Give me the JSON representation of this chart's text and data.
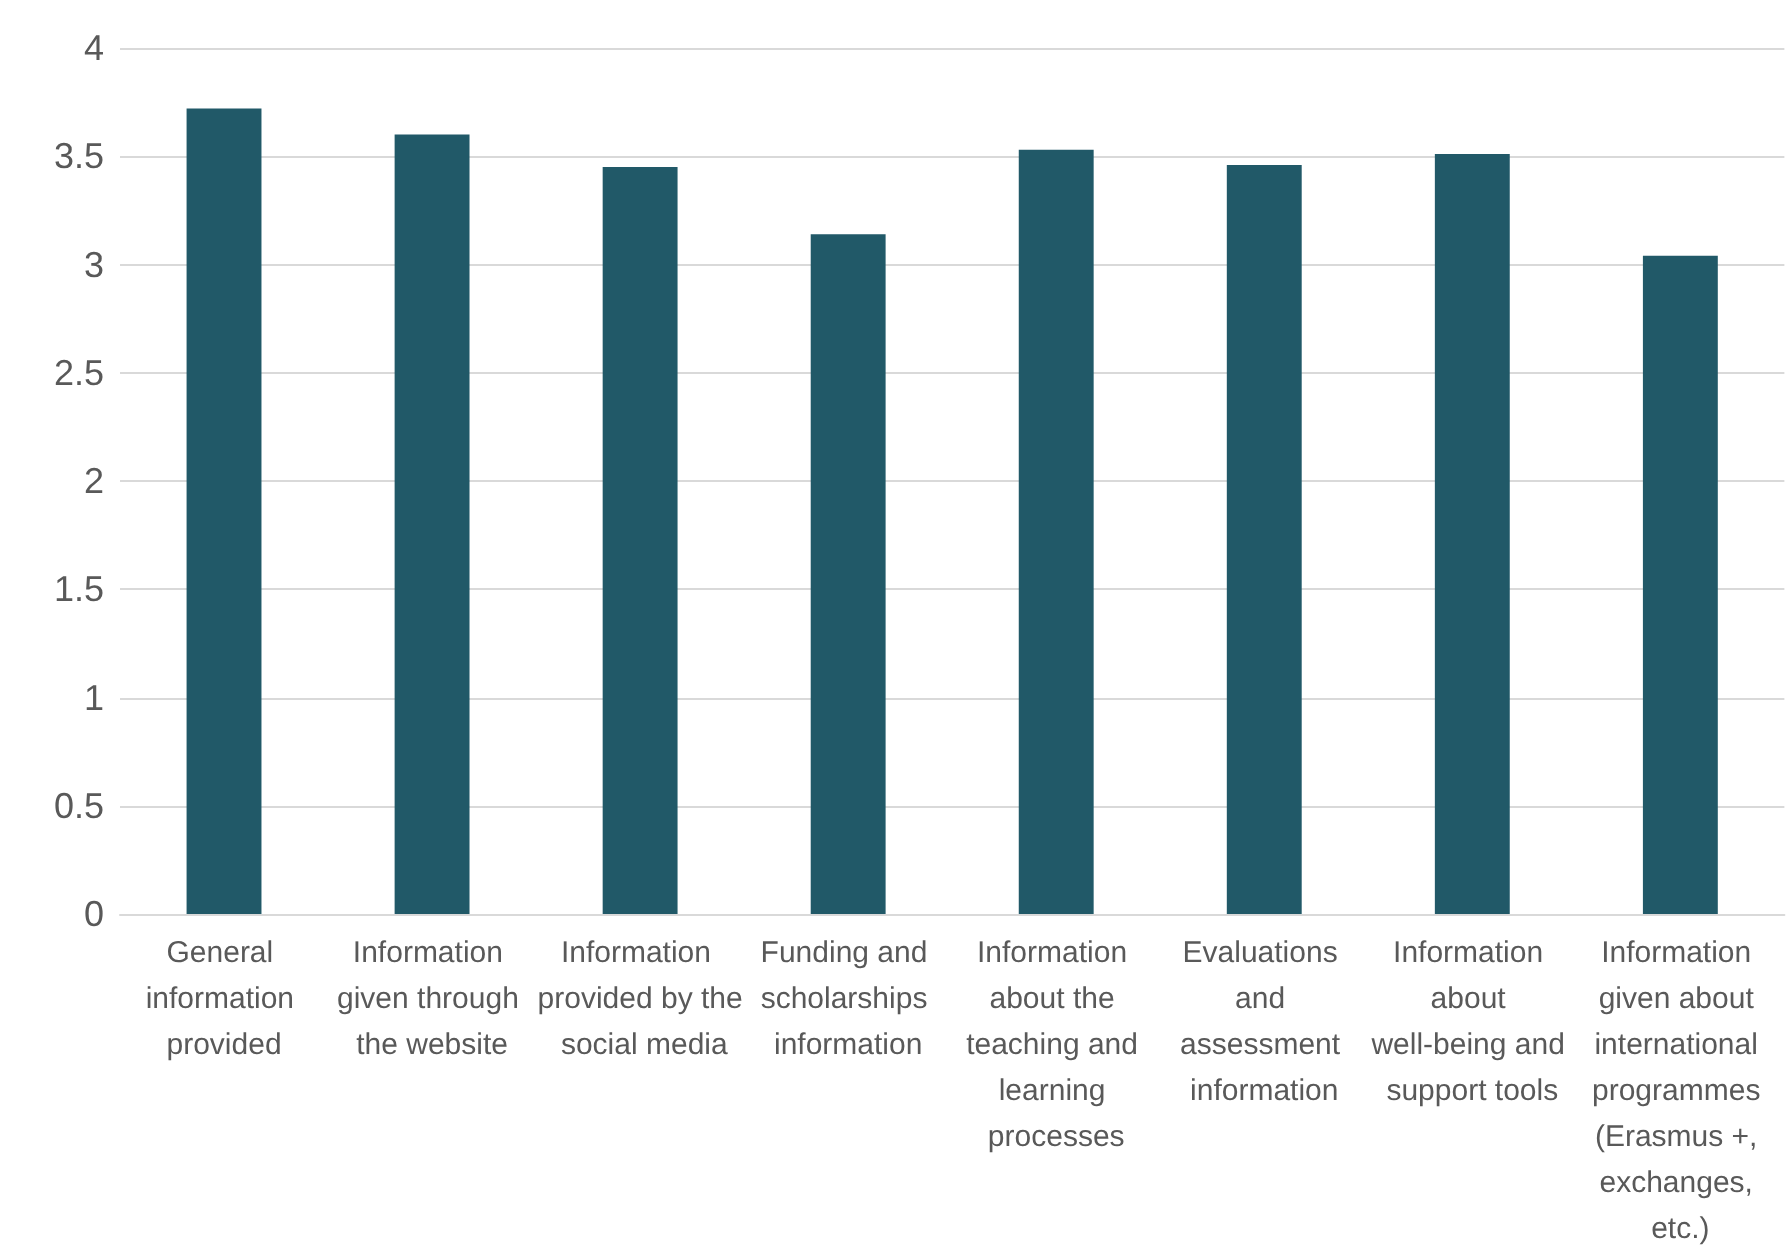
{
  "chart_data": {
    "type": "bar",
    "categories": [
      "General information provided",
      "Information given through the website",
      "Information provided by the social media",
      "Funding and scholarships information",
      "Information about the teaching and learning processes",
      "Evaluations and assessment information",
      "Information about well-being and support tools",
      "Information given about international programmes (Erasmus +, exchanges, etc.)"
    ],
    "values": [
      3.72,
      3.6,
      3.45,
      3.14,
      3.53,
      3.46,
      3.51,
      3.04
    ],
    "color": "#215968",
    "ylim": [
      0,
      4
    ],
    "yticks": [
      0,
      0.5,
      1,
      1.5,
      2,
      2.5,
      3,
      3.5,
      4
    ],
    "grid": "y"
  }
}
